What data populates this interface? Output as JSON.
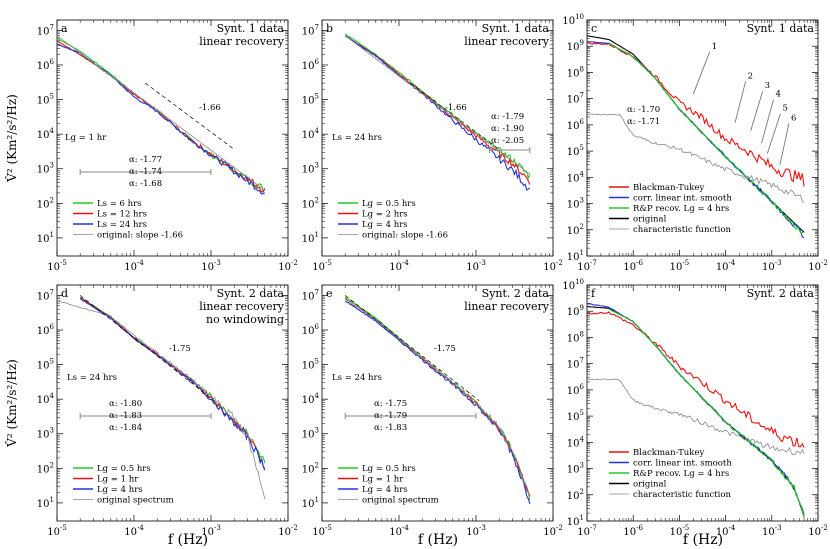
{
  "xlabel": "f (Hz)",
  "ylabel": "V̂² (Km²/s²/Hz)",
  "colors": {
    "green": "#22cc22",
    "red": "#ee1111",
    "blue": "#2233dd",
    "black": "#000000",
    "gray": "#888888"
  },
  "chart_data": [
    {
      "type": "line",
      "panel": "a",
      "title": "Synt. 1 data",
      "subtitle": "linear recovery",
      "xscale": "log",
      "yscale": "log",
      "xlim": [
        1e-05,
        0.01
      ],
      "ylim": [
        3,
        20000000.0
      ],
      "annotations": [
        "Lg = 1 hr",
        "-1.66"
      ],
      "alphas": [
        {
          "text": "α: -1.77",
          "color": "green"
        },
        {
          "text": "α: -1.74",
          "color": "red"
        },
        {
          "text": "α: -1.68",
          "color": "blue"
        }
      ],
      "legend": [
        {
          "label": "Ls = 6 hrs",
          "color": "green"
        },
        {
          "label": "Ls = 12 hrs",
          "color": "red"
        },
        {
          "label": "Ls = 24 hrs",
          "color": "blue"
        },
        {
          "label": "original: slope -1.66",
          "color": "gray"
        }
      ],
      "slope": -1.66,
      "fit_range": [
        2e-05,
        0.001
      ],
      "series": [
        {
          "color": "green",
          "x": [
            1e-05,
            2e-05,
            5e-05,
            0.0001,
            0.0002,
            0.0005,
            0.001,
            0.003,
            0.005
          ],
          "y": [
            6000000.0,
            2500000.0,
            550000.0,
            150000.0,
            50000.0,
            8000.0,
            2500.0,
            500.0,
            250.0
          ]
        },
        {
          "color": "red",
          "x": [
            1e-05,
            2e-05,
            5e-05,
            0.0001,
            0.0002,
            0.0005,
            0.001,
            0.003,
            0.005
          ],
          "y": [
            5000000.0,
            2000000.0,
            500000.0,
            140000.0,
            48000.0,
            8000.0,
            2600.0,
            500.0,
            240.0
          ]
        },
        {
          "color": "blue",
          "x": [
            1e-05,
            2e-05,
            5e-05,
            0.0001,
            0.0002,
            0.0005,
            0.001,
            0.003,
            0.005
          ],
          "y": [
            4000000.0,
            2200000.0,
            500000.0,
            120000.0,
            45000.0,
            8000.0,
            2500.0,
            450.0,
            200.0
          ]
        },
        {
          "color": "gray",
          "x": [
            1e-05,
            0.005
          ],
          "y": [
            7000000.0,
            240.0
          ]
        }
      ]
    },
    {
      "type": "line",
      "panel": "b",
      "title": "Synt. 1 data",
      "subtitle": "linear recovery",
      "xscale": "log",
      "yscale": "log",
      "xlim": [
        1e-05,
        0.01
      ],
      "ylim": [
        3,
        20000000.0
      ],
      "annotations": [
        "Ls = 24 hrs",
        "-1.66"
      ],
      "alphas": [
        {
          "text": "α: -1.79",
          "color": "green"
        },
        {
          "text": "α: -1.90",
          "color": "red"
        },
        {
          "text": "α: -2.05",
          "color": "blue"
        }
      ],
      "legend": [
        {
          "label": "Lg = 0.5 hrs",
          "color": "green"
        },
        {
          "label": "Lg = 2 hrs",
          "color": "red"
        },
        {
          "label": "Lg = 4 hrs",
          "color": "blue"
        },
        {
          "label": "original: slope -1.66",
          "color": "gray"
        }
      ],
      "slope": -1.66,
      "fit_range": [
        0.0015,
        0.005
      ],
      "series": [
        {
          "color": "green",
          "x": [
            2e-05,
            5e-05,
            0.0001,
            0.0002,
            0.0005,
            0.001,
            0.003,
            0.005
          ],
          "y": [
            8000000.0,
            2000000.0,
            600000.0,
            180000.0,
            35000.0,
            10000.0,
            1800.0,
            600.0
          ]
        },
        {
          "color": "red",
          "x": [
            2e-05,
            5e-05,
            0.0001,
            0.0002,
            0.0005,
            0.001,
            0.003,
            0.005
          ],
          "y": [
            7000000.0,
            1900000.0,
            550000.0,
            160000.0,
            30000.0,
            9000.0,
            1400.0,
            450.0
          ]
        },
        {
          "color": "blue",
          "x": [
            2e-05,
            5e-05,
            0.0001,
            0.0002,
            0.0005,
            0.001,
            0.003,
            0.005
          ],
          "y": [
            7000000.0,
            1800000.0,
            500000.0,
            150000.0,
            25000.0,
            7000.0,
            900.0,
            250.0
          ]
        },
        {
          "color": "gray",
          "x": [
            2e-05,
            0.005
          ],
          "y": [
            7000000.0,
            700.0
          ]
        }
      ]
    },
    {
      "type": "line",
      "panel": "c",
      "title": "Synt. 1 data",
      "xscale": "log",
      "yscale": "log",
      "xlim": [
        1e-07,
        0.01
      ],
      "ylim": [
        10,
        10000000000.0
      ],
      "alphas": [
        {
          "text": "α: -1.70",
          "color": "blue"
        },
        {
          "text": "α: -1.71",
          "color": "green"
        }
      ],
      "peaks": [
        "1",
        "2",
        "3",
        "4",
        "5",
        "6"
      ],
      "legend": [
        {
          "label": "Blackman-Tukey",
          "color": "red"
        },
        {
          "label": "corr. linear int. smooth",
          "color": "blue"
        },
        {
          "label": "R&P recov. Lg = 4 hrs",
          "color": "green"
        },
        {
          "label": "original",
          "color": "black"
        },
        {
          "label": "characteristic function",
          "color": "gray"
        }
      ],
      "series": [
        {
          "color": "black",
          "x": [
            1e-07,
            3e-07,
            1e-06,
            3e-06,
            1e-05,
            0.0001,
            0.001,
            0.005
          ],
          "y": [
            2500000000.0,
            1800000000.0,
            500000000.0,
            60000000.0,
            4000000.0,
            60000.0,
            1200.0,
            80
          ]
        },
        {
          "color": "red",
          "x": [
            1e-07,
            3e-07,
            1e-06,
            3e-06,
            1e-05,
            3e-05,
            0.0001,
            0.0003,
            0.001,
            0.005
          ],
          "y": [
            1300000000.0,
            1200000000.0,
            400000000.0,
            70000000.0,
            7000000.0,
            2000000.0,
            300000.0,
            100000.0,
            25000.0,
            8000.0
          ]
        },
        {
          "color": "blue",
          "x": [
            1e-07,
            3e-07,
            1e-06,
            3e-06,
            1e-05,
            0.0001,
            0.001,
            0.005
          ],
          "y": [
            1500000000.0,
            1300000000.0,
            400000000.0,
            60000000.0,
            4000000.0,
            60000.0,
            1200.0,
            60
          ]
        },
        {
          "color": "green",
          "x": [
            3e-07,
            1e-06,
            3e-06,
            1e-05,
            0.0001,
            0.001,
            0.005
          ],
          "y": [
            1300000000.0,
            400000000.0,
            60000000.0,
            4000000.0,
            60000.0,
            1200.0,
            60
          ]
        },
        {
          "color": "gray",
          "x": [
            1e-07,
            5e-07,
            1e-06,
            3e-06,
            1e-05,
            0.0001,
            0.001,
            0.005
          ],
          "y": [
            2500000.0,
            2500000.0,
            400000.0,
            200000.0,
            120000.0,
            20000.0,
            5000.0,
            1500.0
          ]
        }
      ]
    },
    {
      "type": "line",
      "panel": "d",
      "title": "Synt. 2 data",
      "subtitle": "linear recovery",
      "subtitle2": "no windowing",
      "xscale": "log",
      "yscale": "log",
      "xlim": [
        1e-05,
        0.01
      ],
      "ylim": [
        3,
        20000000.0
      ],
      "annotations": [
        "Ls = 24 hrs",
        "-1.75"
      ],
      "alphas": [
        {
          "text": "α: -1.80",
          "color": "green"
        },
        {
          "text": "α: -1.83",
          "color": "red"
        },
        {
          "text": "α: -1.84",
          "color": "blue"
        }
      ],
      "legend": [
        {
          "label": "Lg = 0.5 hrs",
          "color": "green"
        },
        {
          "label": "Lg = 1 hr",
          "color": "red"
        },
        {
          "label": "Lg = 4 hrs",
          "color": "blue"
        },
        {
          "label": "original spectrum",
          "color": "gray"
        }
      ],
      "slope": -1.75,
      "fit_range": [
        2e-05,
        0.001
      ],
      "series": [
        {
          "color": "green",
          "x": [
            2e-05,
            5e-05,
            0.0001,
            0.0002,
            0.0005,
            0.001,
            0.003,
            0.005
          ],
          "y": [
            9000000.0,
            2400000.0,
            600000.0,
            200000.0,
            45000.0,
            12000.0,
            1000.0,
            150.0
          ]
        },
        {
          "color": "red",
          "x": [
            2e-05,
            5e-05,
            0.0001,
            0.0002,
            0.0005,
            0.001,
            0.003,
            0.005
          ],
          "y": [
            8500000.0,
            2300000.0,
            600000.0,
            200000.0,
            42000.0,
            11000.0,
            900.0,
            120.0
          ]
        },
        {
          "color": "blue",
          "x": [
            2e-05,
            5e-05,
            0.0001,
            0.0002,
            0.0005,
            0.001,
            0.003,
            0.005
          ],
          "y": [
            8000000.0,
            2200000.0,
            550000.0,
            190000.0,
            40000.0,
            10000.0,
            800.0,
            110.0
          ]
        },
        {
          "color": "gray",
          "x": [
            1e-05,
            5e-05,
            0.0001,
            0.0005,
            0.001,
            0.002,
            0.003,
            0.005
          ],
          "y": [
            7000000.0,
            2500000.0,
            700000.0,
            45000.0,
            12000.0,
            3000.0,
            800.0,
            15
          ]
        }
      ]
    },
    {
      "type": "line",
      "panel": "e",
      "title": "Synt. 2 data",
      "subtitle": "linear recovery",
      "xscale": "log",
      "yscale": "log",
      "xlim": [
        1e-05,
        0.01
      ],
      "ylim": [
        3,
        20000000.0
      ],
      "annotations": [
        "Ls = 24 hrs",
        "-1.75"
      ],
      "alphas": [
        {
          "text": "α: -1.75",
          "color": "green"
        },
        {
          "text": "α: -1.79",
          "color": "red"
        },
        {
          "text": "α: -1.83",
          "color": "blue"
        }
      ],
      "legend": [
        {
          "label": "Lg = 0.5 hrs",
          "color": "green"
        },
        {
          "label": "Lg = 1 hr",
          "color": "red"
        },
        {
          "label": "Lg = 4 hrs",
          "color": "blue"
        },
        {
          "label": "original spectrum",
          "color": "gray"
        }
      ],
      "slope": -1.75,
      "fit_range": [
        2e-05,
        0.001
      ],
      "series": [
        {
          "color": "green",
          "x": [
            2e-05,
            5e-05,
            0.0001,
            0.0002,
            0.0005,
            0.001,
            0.002,
            0.003,
            0.005
          ],
          "y": [
            9000000.0,
            2200000.0,
            600000.0,
            160000.0,
            30000.0,
            8000.0,
            1500.0,
            300.0,
            15
          ]
        },
        {
          "color": "red",
          "x": [
            2e-05,
            5e-05,
            0.0001,
            0.0002,
            0.0005,
            0.001,
            0.002,
            0.003,
            0.005
          ],
          "y": [
            8000000.0,
            2000000.0,
            550000.0,
            150000.0,
            28000.0,
            7500.0,
            1400.0,
            280.0,
            14
          ]
        },
        {
          "color": "blue",
          "x": [
            2e-05,
            5e-05,
            0.0001,
            0.0002,
            0.0005,
            0.001,
            0.002,
            0.003,
            0.005
          ],
          "y": [
            7000000.0,
            1800000.0,
            500000.0,
            140000.0,
            26000.0,
            7000.0,
            1300.0,
            250.0,
            12
          ]
        },
        {
          "color": "gray",
          "x": [
            2e-05,
            5e-05,
            0.0001,
            0.0005,
            0.001,
            0.002,
            0.003,
            0.005
          ],
          "y": [
            8000000.0,
            2000000.0,
            550000.0,
            30000.0,
            8000.0,
            1500.0,
            300.0,
            15
          ]
        }
      ]
    },
    {
      "type": "line",
      "panel": "f",
      "title": "Synt. 2 data",
      "xscale": "log",
      "yscale": "log",
      "xlim": [
        1e-07,
        0.01
      ],
      "ylim": [
        10,
        10000000000.0
      ],
      "legend": [
        {
          "label": "Blackman-Tukey",
          "color": "red"
        },
        {
          "label": "corr. linear int. smooth",
          "color": "blue"
        },
        {
          "label": "R&P recov. Lg = 4 hrs",
          "color": "green"
        },
        {
          "label": "original",
          "color": "black"
        },
        {
          "label": "characteristic function",
          "color": "gray"
        }
      ],
      "series": [
        {
          "color": "black",
          "x": [
            1e-07,
            3e-07,
            1e-06,
            3e-06,
            1e-05,
            0.0001,
            0.001,
            0.003,
            0.005
          ],
          "y": [
            1500000000.0,
            1300000000.0,
            400000000.0,
            50000000.0,
            4000000.0,
            60000.0,
            2000.0,
            200.0,
            15
          ]
        },
        {
          "color": "red",
          "x": [
            1e-07,
            3e-07,
            1e-06,
            3e-06,
            1e-05,
            3e-05,
            0.0001,
            0.0003,
            0.001,
            0.005
          ],
          "y": [
            800000000.0,
            900000000.0,
            300000000.0,
            60000000.0,
            8000000.0,
            2000000.0,
            400000.0,
            100000.0,
            25000.0,
            8000.0
          ]
        },
        {
          "color": "blue",
          "x": [
            1e-07,
            3e-07,
            1e-06,
            3e-06,
            1e-05,
            0.0001,
            0.001,
            0.003,
            0.005
          ],
          "y": [
            2000000000.0,
            1400000000.0,
            400000000.0,
            50000000.0,
            4000000.0,
            60000.0,
            2000.0,
            200.0,
            15
          ]
        },
        {
          "color": "green",
          "x": [
            3e-07,
            1e-06,
            3e-06,
            1e-05,
            0.0001,
            0.001,
            0.003,
            0.005
          ],
          "y": [
            1200000000.0,
            400000000.0,
            50000000.0,
            4000000.0,
            60000.0,
            2000.0,
            200.0,
            15
          ]
        },
        {
          "color": "gray",
          "x": [
            1e-07,
            5e-07,
            1e-06,
            3e-06,
            1e-05,
            0.0001,
            0.001,
            0.005
          ],
          "y": [
            2500000.0,
            2500000.0,
            400000.0,
            200000.0,
            120000.0,
            25000.0,
            6000.0,
            4000.0
          ]
        }
      ]
    }
  ]
}
